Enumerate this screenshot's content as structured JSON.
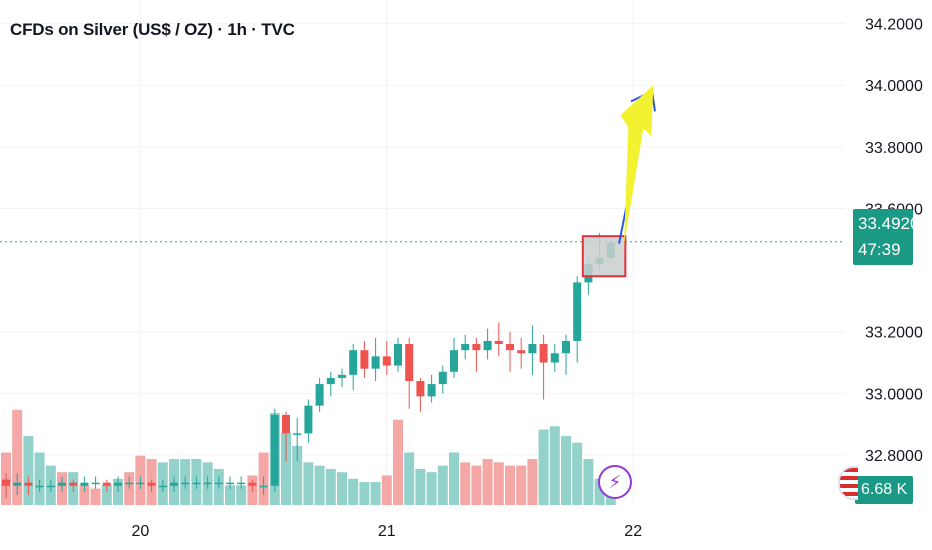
{
  "header": {
    "title": "CFDs on Silver (US$ / OZ) · 1h · TVC"
  },
  "price_tag": {
    "price": "33.4920",
    "countdown": "47:39"
  },
  "volume_tag": {
    "value": "6.68 K"
  },
  "colors": {
    "up": "#26a69a",
    "down": "#ef5350",
    "up_vol": "#92d2cb",
    "down_vol": "#f4a7a5",
    "tag_bg": "#1a9a84",
    "box_fill": "#c9cfce",
    "box_stroke": "#e0313f",
    "arrow_blue": "#2f55e6",
    "arrow_yellow": "#f2f230"
  },
  "chart_data": {
    "type": "candlestick",
    "title": "CFDs on Silver (US$ / OZ) · 1h · TVC",
    "y_ticks": [
      34.2,
      34.0,
      33.8,
      33.6,
      33.2,
      33.0,
      32.8
    ],
    "ylim": [
      32.67,
      34.27
    ],
    "x_ticks": [
      {
        "label": "20",
        "index": 12
      },
      {
        "label": "21",
        "index": 34
      },
      {
        "label": "22",
        "index": 56
      }
    ],
    "last_price": 33.492,
    "candles": [
      [
        32.72,
        32.7,
        32.66,
        32.74
      ],
      [
        32.7,
        32.71,
        32.67,
        32.74
      ],
      [
        32.71,
        32.7,
        32.67,
        32.73
      ],
      [
        32.7,
        32.7,
        32.68,
        32.72
      ],
      [
        32.7,
        32.7,
        32.68,
        32.72
      ],
      [
        32.7,
        32.71,
        32.68,
        32.73
      ],
      [
        32.71,
        32.7,
        32.68,
        32.72
      ],
      [
        32.7,
        32.71,
        32.68,
        32.73
      ],
      [
        32.71,
        32.71,
        32.69,
        32.73
      ],
      [
        32.71,
        32.7,
        32.68,
        32.72
      ],
      [
        32.7,
        32.71,
        32.68,
        32.73
      ],
      [
        32.71,
        32.71,
        32.69,
        32.73
      ],
      [
        32.71,
        32.71,
        32.69,
        32.73
      ],
      [
        32.71,
        32.7,
        32.68,
        32.72
      ],
      [
        32.7,
        32.7,
        32.68,
        32.72
      ],
      [
        32.7,
        32.71,
        32.68,
        32.73
      ],
      [
        32.71,
        32.71,
        32.69,
        32.73
      ],
      [
        32.71,
        32.71,
        32.69,
        32.73
      ],
      [
        32.71,
        32.71,
        32.69,
        32.73
      ],
      [
        32.71,
        32.71,
        32.69,
        32.73
      ],
      [
        32.71,
        32.71,
        32.69,
        32.73
      ],
      [
        32.71,
        32.71,
        32.69,
        32.73
      ],
      [
        32.71,
        32.7,
        32.68,
        32.72
      ],
      [
        32.7,
        32.7,
        32.67,
        32.73
      ],
      [
        32.7,
        32.93,
        32.68,
        32.95
      ],
      [
        32.93,
        32.87,
        32.78,
        32.94
      ],
      [
        32.87,
        32.87,
        32.78,
        32.92
      ],
      [
        32.87,
        32.96,
        32.84,
        32.98
      ],
      [
        32.96,
        33.03,
        32.94,
        33.05
      ],
      [
        33.03,
        33.05,
        32.99,
        33.07
      ],
      [
        33.05,
        33.06,
        33.02,
        33.08
      ],
      [
        33.06,
        33.14,
        33.01,
        33.16
      ],
      [
        33.14,
        33.08,
        33.05,
        33.17
      ],
      [
        33.08,
        33.12,
        33.04,
        33.18
      ],
      [
        33.12,
        33.09,
        33.06,
        33.17
      ],
      [
        33.09,
        33.16,
        33.07,
        33.18
      ],
      [
        33.16,
        33.04,
        32.95,
        33.18
      ],
      [
        33.04,
        32.99,
        32.94,
        33.05
      ],
      [
        32.99,
        33.03,
        32.97,
        33.06
      ],
      [
        33.03,
        33.07,
        33.0,
        33.09
      ],
      [
        33.07,
        33.14,
        33.05,
        33.18
      ],
      [
        33.14,
        33.16,
        33.11,
        33.19
      ],
      [
        33.16,
        33.14,
        33.07,
        33.18
      ],
      [
        33.14,
        33.17,
        33.11,
        33.21
      ],
      [
        33.17,
        33.16,
        33.12,
        33.23
      ],
      [
        33.16,
        33.14,
        33.07,
        33.2
      ],
      [
        33.14,
        33.13,
        33.08,
        33.18
      ],
      [
        33.13,
        33.16,
        33.06,
        33.22
      ],
      [
        33.16,
        33.1,
        32.98,
        33.19
      ],
      [
        33.1,
        33.13,
        33.07,
        33.16
      ],
      [
        33.13,
        33.17,
        33.06,
        33.19
      ],
      [
        33.17,
        33.36,
        33.1,
        33.38
      ],
      [
        33.36,
        33.42,
        33.32,
        33.44
      ],
      [
        33.42,
        33.44,
        33.4,
        33.52
      ],
      [
        33.44,
        33.49,
        33.43,
        33.5
      ]
    ],
    "volume": [
      [
        1.6,
        "down"
      ],
      [
        2.9,
        "down"
      ],
      [
        2.1,
        "up"
      ],
      [
        1.6,
        "up"
      ],
      [
        1.2,
        "up"
      ],
      [
        1.0,
        "down"
      ],
      [
        1.0,
        "up"
      ],
      [
        0.6,
        "down"
      ],
      [
        0.5,
        "down"
      ],
      [
        0.6,
        "up"
      ],
      [
        0.8,
        "up"
      ],
      [
        1.0,
        "down"
      ],
      [
        1.5,
        "down"
      ],
      [
        1.4,
        "down"
      ],
      [
        1.3,
        "up"
      ],
      [
        1.4,
        "up"
      ],
      [
        1.4,
        "up"
      ],
      [
        1.4,
        "up"
      ],
      [
        1.3,
        "up"
      ],
      [
        1.1,
        "up"
      ],
      [
        0.6,
        "up"
      ],
      [
        0.6,
        "up"
      ],
      [
        0.9,
        "down"
      ],
      [
        1.6,
        "down"
      ],
      [
        2.8,
        "up"
      ],
      [
        2.2,
        "up"
      ],
      [
        1.8,
        "up"
      ],
      [
        1.3,
        "up"
      ],
      [
        1.2,
        "up"
      ],
      [
        1.1,
        "up"
      ],
      [
        1.0,
        "up"
      ],
      [
        0.8,
        "up"
      ],
      [
        0.7,
        "up"
      ],
      [
        0.7,
        "up"
      ],
      [
        0.9,
        "down"
      ],
      [
        2.6,
        "down"
      ],
      [
        1.6,
        "up"
      ],
      [
        1.1,
        "up"
      ],
      [
        1.0,
        "up"
      ],
      [
        1.2,
        "up"
      ],
      [
        1.6,
        "up"
      ],
      [
        1.3,
        "down"
      ],
      [
        1.2,
        "down"
      ],
      [
        1.4,
        "down"
      ],
      [
        1.3,
        "down"
      ],
      [
        1.2,
        "down"
      ],
      [
        1.2,
        "down"
      ],
      [
        1.4,
        "down"
      ],
      [
        2.3,
        "up"
      ],
      [
        2.4,
        "up"
      ],
      [
        2.1,
        "up"
      ],
      [
        1.9,
        "up"
      ],
      [
        1.4,
        "up"
      ],
      [
        0.8,
        "up"
      ],
      [
        0.6,
        "up"
      ]
    ],
    "volume_max": 3.2,
    "annotations": {
      "box": {
        "idx_from": 51.5,
        "idx_to": 55.3,
        "price_from": 33.38,
        "price_to": 33.51
      },
      "blue_arrow_to": 33.98,
      "yellow_arrow_to": 34.0
    }
  }
}
